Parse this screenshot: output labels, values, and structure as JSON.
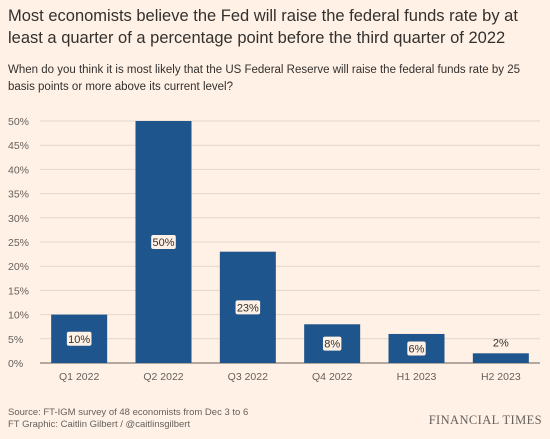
{
  "header": {
    "title": "Most economists believe the Fed will raise the federal funds rate by at least a quarter of a percentage point before the third quarter of 2022",
    "subtitle": "When do you think it is most likely that the US Federal Reserve will raise the federal funds rate by 25 basis points or more above its current level?"
  },
  "footer": {
    "source": "Source: FT-IGM survey of 48 economists from Dec 3 to 6",
    "credit": "FT Graphic: Caitlin Gilbert / @caitlinsgilbert",
    "brand": "FINANCIAL TIMES"
  },
  "chart_data": {
    "type": "bar",
    "categories": [
      "Q1 2022",
      "Q2 2022",
      "Q3 2022",
      "Q4 2022",
      "H1 2023",
      "H2 2023"
    ],
    "values": [
      10,
      50,
      23,
      8,
      6,
      2
    ],
    "data_labels": [
      "10%",
      "50%",
      "23%",
      "8%",
      "6%",
      "2%"
    ],
    "y_ticks": [
      0,
      5,
      10,
      15,
      20,
      25,
      30,
      35,
      40,
      45,
      50
    ],
    "y_tick_labels": [
      "0%",
      "5%",
      "10%",
      "15%",
      "20%",
      "25%",
      "30%",
      "35%",
      "40%",
      "45%",
      "50%"
    ],
    "ylim": [
      0,
      50
    ],
    "grid": true,
    "colors": {
      "bar": "#1E558C",
      "label_bg": "#FFF1E5",
      "grid": "#E3D6CB",
      "axis": "#66605C",
      "background": "#FFF1E5"
    }
  }
}
